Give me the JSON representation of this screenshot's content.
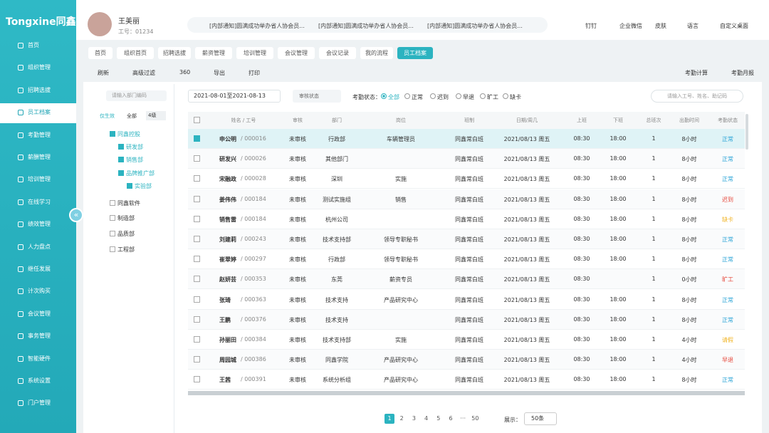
{
  "brand": "Tongxine同鑫",
  "sidebar": {
    "items": [
      "首页",
      "组织管理",
      "招聘选拔",
      "员工档案",
      "考勤管理",
      "薪酬管理",
      "培训管理",
      "在线学习",
      "绩效管理",
      "人力盘点",
      "继任发展",
      "计次购买",
      "会议管理",
      "事务管理",
      "智能硬件",
      "系统设置",
      "门户管理"
    ],
    "active": 3
  },
  "user": {
    "name": "王美丽",
    "id": "工号：01234"
  },
  "notices": [
    "[内部通知]圆满成功举办省人协会员...",
    "[内部通知]圆满成功举办省人协会员...",
    "[内部通知]圆满成功举办省人协会员..."
  ],
  "top_links": [
    "钉钉",
    "企业微信",
    "皮肤",
    "语言",
    "自定义桌面"
  ],
  "tabs": {
    "items": [
      "首页",
      "组织首页",
      "招聘选拔",
      "薪资管理",
      "培训管理",
      "会议管理",
      "会议记录",
      "我的流程",
      "员工档案"
    ],
    "active": 8
  },
  "toolbar": {
    "left": [
      "刷新",
      "高级过滤",
      "360",
      "导出",
      "打印"
    ],
    "right": [
      "考勤计算",
      "考勤月报"
    ]
  },
  "tree": {
    "search_placeholder": "请输入部门编码",
    "options": [
      "仅生效",
      "全部"
    ],
    "level": "4级",
    "nodes": [
      {
        "label": "同鑫控股",
        "level": 0,
        "checked": true
      },
      {
        "label": "研发部",
        "level": 1,
        "checked": true
      },
      {
        "label": "销售部",
        "level": 1,
        "checked": true
      },
      {
        "label": "品牌推广部",
        "level": 1,
        "checked": true
      },
      {
        "label": "实验部",
        "level": 2,
        "checked": true
      },
      {
        "label": "同鑫软件",
        "level": 0,
        "checked": false
      },
      {
        "label": "制造部",
        "level": 0,
        "checked": false
      },
      {
        "label": "品质部",
        "level": 0,
        "checked": false
      },
      {
        "label": "工程部",
        "level": 0,
        "checked": false
      }
    ]
  },
  "filter": {
    "date_range": "2021-08-01至2021-08-13",
    "audit_select": "审核状态",
    "status_label": "考勤状态：",
    "status_options": [
      "全部",
      "正常",
      "迟到",
      "早退",
      "旷工",
      "缺卡"
    ],
    "search_placeholder": "请输入工号、姓名、助记码"
  },
  "table": {
    "columns": [
      "姓名 / 工号",
      "审核",
      "部门",
      "岗位",
      "班制",
      "日期/周几",
      "上班",
      "下班",
      "总班次",
      "出勤时间",
      "考勤状态"
    ],
    "rows": [
      {
        "checked": true,
        "name": "申公明",
        "id": "/ 000016",
        "audit": "未审核",
        "dept": "行政部",
        "post": "车辆管理员",
        "shift": "同鑫常白班",
        "date": "2021/08/13  周五",
        "on": "08:30",
        "off": "18:00",
        "count": "1",
        "hours": "8小时",
        "status": "正常",
        "color": "#2aa3d6"
      },
      {
        "checked": false,
        "name": "研发兴",
        "id": "/ 000026",
        "audit": "未审核",
        "dept": "其他部门",
        "post": null,
        "shift": "同鑫常白班",
        "date": "2021/08/13  周五",
        "on": "08:30",
        "off": "18:00",
        "count": "1",
        "hours": "8小时",
        "status": "正常",
        "color": "#2aa3d6"
      },
      {
        "checked": false,
        "name": "宋融政",
        "id": "/ 000028",
        "audit": "未审核",
        "dept": "深圳",
        "post": "实施",
        "shift": "同鑫常白班",
        "date": "2021/08/13  周五",
        "on": "08:30",
        "off": "18:00",
        "count": "1",
        "hours": "8小时",
        "status": "正常",
        "color": "#2aa3d6"
      },
      {
        "checked": false,
        "name": "姜伟伟",
        "id": "/ 000184",
        "audit": "未审核",
        "dept": "测试实施组",
        "post": "销售",
        "shift": "同鑫常白班",
        "date": "2021/08/13  周五",
        "on": "08:30",
        "off": "18:00",
        "count": "1",
        "hours": "8小时",
        "status": "迟到",
        "color": "#e5483b"
      },
      {
        "checked": false,
        "name": "销售雷",
        "id": "/ 000184",
        "audit": "未审核",
        "dept": "杭州公司",
        "post": null,
        "shift": "同鑫常白班",
        "date": "2021/08/13  周五",
        "on": "08:30",
        "off": "18:00",
        "count": "1",
        "hours": "8小时",
        "status": "缺卡",
        "color": "#f0b323"
      },
      {
        "checked": false,
        "name": "刘建莉",
        "id": "/ 000243",
        "audit": "未审核",
        "dept": "技术支持部",
        "post": "领导专职秘书",
        "shift": "同鑫常白班",
        "date": "2021/08/13  周五",
        "on": "08:30",
        "off": "18:00",
        "count": "1",
        "hours": "8小时",
        "status": "正常",
        "color": "#2aa3d6"
      },
      {
        "checked": false,
        "name": "崔翠婷",
        "id": "/ 000297",
        "audit": "未审核",
        "dept": "行政部",
        "post": "领导专职秘书",
        "shift": "同鑫常白班",
        "date": "2021/08/13  周五",
        "on": "08:30",
        "off": "18:00",
        "count": "1",
        "hours": "8小时",
        "status": "正常",
        "color": "#2aa3d6"
      },
      {
        "checked": false,
        "name": "赵妍芸",
        "id": "/ 000353",
        "audit": "未审核",
        "dept": "东莞",
        "post": "薪资专员",
        "shift": "同鑫常白班",
        "date": "2021/08/13  周五",
        "on": "08:30",
        "off": null,
        "count": "1",
        "hours": "0小时",
        "status": "旷工",
        "color": "#e5483b"
      },
      {
        "checked": false,
        "name": "张琦",
        "id": "/ 000363",
        "audit": "未审核",
        "dept": "技术支持",
        "post": "产品研究中心",
        "shift": "同鑫常白班",
        "date": "2021/08/13  周五",
        "on": "08:30",
        "off": "18:00",
        "count": "1",
        "hours": "8小时",
        "status": "正常",
        "color": "#2aa3d6"
      },
      {
        "checked": false,
        "name": "王鹏",
        "id": "/ 000376",
        "audit": "未审核",
        "dept": "技术支持",
        "post": null,
        "shift": "同鑫常白班",
        "date": "2021/08/13  周五",
        "on": "08:30",
        "off": "18:00",
        "count": "1",
        "hours": "8小时",
        "status": "正常",
        "color": "#2aa3d6"
      },
      {
        "checked": false,
        "name": "孙丽田",
        "id": "/ 000384",
        "audit": "未审核",
        "dept": "技术支持部",
        "post": "实施",
        "shift": "同鑫常白班",
        "date": "2021/08/13  周五",
        "on": "08:30",
        "off": "18:00",
        "count": "1",
        "hours": "4小时",
        "status": "请假",
        "color": "#f0b323"
      },
      {
        "checked": false,
        "name": "周园城",
        "id": "/ 000386",
        "audit": "未审核",
        "dept": "同鑫学院",
        "post": "产品研究中心",
        "shift": "同鑫常白班",
        "date": "2021/08/13  周五",
        "on": "08:30",
        "off": "18:00",
        "count": "1",
        "hours": "4小时",
        "status": "早退",
        "color": "#e5483b"
      },
      {
        "checked": false,
        "name": "王茜",
        "id": "/ 000391",
        "audit": "未审核",
        "dept": "系统分析组",
        "post": "产品研究中心",
        "shift": "同鑫常白班",
        "date": "2021/08/13  周五",
        "on": "08:30",
        "off": "18:00",
        "count": "1",
        "hours": "8小时",
        "status": "正常",
        "color": "#2aa3d6"
      }
    ]
  },
  "pagination": {
    "pages": [
      "1",
      "2",
      "3",
      "4",
      "5",
      "6",
      "···",
      "50"
    ],
    "current": 0,
    "size_label": "展示：",
    "size": "50条"
  }
}
